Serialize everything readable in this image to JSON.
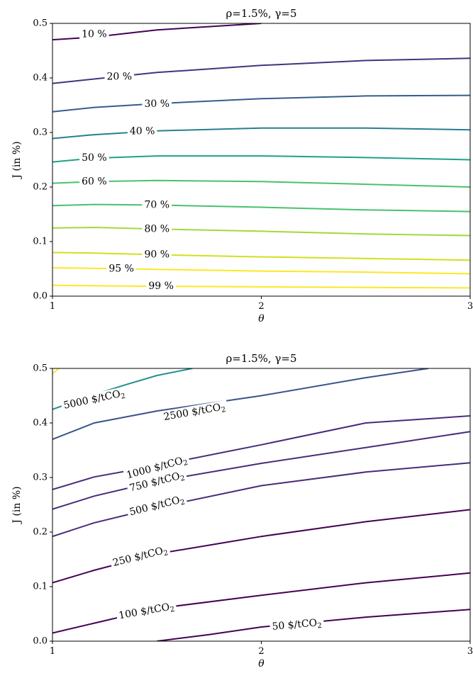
{
  "chart_data": [
    {
      "type": "contour",
      "title": "ρ=1.5%, γ=5",
      "xlabel": "θ",
      "ylabel": "J (in %)",
      "xlim": [
        1,
        3
      ],
      "ylim": [
        0,
        0.5
      ],
      "xticks": [
        "1",
        "2",
        "3"
      ],
      "yticks": [
        "0.0",
        "0.1",
        "0.2",
        "0.3",
        "0.4",
        "0.5"
      ],
      "x": [
        1,
        1.2,
        1.5,
        2,
        2.5,
        3
      ],
      "levels": [
        {
          "label": "10 %",
          "color": "#440154",
          "y": [
            0.47,
            0.475,
            0.488,
            0.5,
            null,
            null
          ],
          "label_at": [
            1.2,
            0.48
          ]
        },
        {
          "label": "20 %",
          "color": "#46327e",
          "y": [
            0.39,
            0.398,
            0.41,
            0.423,
            0.432,
            0.436
          ],
          "label_at": [
            1.32,
            0.402
          ]
        },
        {
          "label": "30 %",
          "color": "#365c8d",
          "y": [
            0.338,
            0.346,
            0.353,
            0.362,
            0.367,
            0.368
          ],
          "label_at": [
            1.5,
            0.352
          ]
        },
        {
          "label": "40 %",
          "color": "#277f8e",
          "y": [
            0.289,
            0.296,
            0.303,
            0.308,
            0.308,
            0.305
          ],
          "label_at": [
            1.43,
            0.302
          ]
        },
        {
          "label": "50 %",
          "color": "#1fa187",
          "y": [
            0.246,
            0.253,
            0.257,
            0.257,
            0.254,
            0.25
          ],
          "label_at": [
            1.2,
            0.253
          ]
        },
        {
          "label": "60 %",
          "color": "#4ac16d",
          "y": [
            0.207,
            0.21,
            0.212,
            0.21,
            0.205,
            0.2
          ],
          "label_at": [
            1.2,
            0.21
          ]
        },
        {
          "label": "70 %",
          "color": "#4ac16d",
          "y": [
            0.166,
            0.168,
            0.167,
            0.163,
            0.158,
            0.155
          ],
          "label_at": [
            1.5,
            0.167
          ]
        },
        {
          "label": "80 %",
          "color": "#a0da39",
          "y": [
            0.125,
            0.126,
            0.123,
            0.119,
            0.114,
            0.111
          ],
          "label_at": [
            1.5,
            0.123
          ]
        },
        {
          "label": "90 %",
          "color": "#d0e11c",
          "y": [
            0.08,
            0.079,
            0.076,
            0.072,
            0.069,
            0.066
          ],
          "label_at": [
            1.5,
            0.076
          ]
        },
        {
          "label": "95 %",
          "color": "#fde725",
          "y": [
            0.052,
            0.051,
            0.049,
            0.046,
            0.044,
            0.041
          ],
          "label_at": [
            1.33,
            0.05
          ]
        },
        {
          "label": "99 %",
          "color": "#fde725",
          "y": [
            0.02,
            0.019,
            0.018,
            0.017,
            0.016,
            0.015
          ],
          "label_at": [
            1.52,
            0.018
          ]
        }
      ]
    },
    {
      "type": "contour",
      "title": "ρ=1.5%, γ=5",
      "xlabel": "θ",
      "ylabel": "J (in %)",
      "xlim": [
        1,
        3
      ],
      "ylim": [
        0,
        0.5
      ],
      "xticks": [
        "1",
        "2",
        "3"
      ],
      "yticks": [
        "0.0",
        "0.1",
        "0.2",
        "0.3",
        "0.4",
        "0.5"
      ],
      "levels": [
        {
          "label": "",
          "color": "#fde725",
          "points": [
            [
              1,
              0.49
            ],
            [
              1.03,
              0.5
            ]
          ]
        },
        {
          "label": "5000 $/tCO2",
          "color": "#21918c",
          "points": [
            [
              1,
              0.425
            ],
            [
              1.2,
              0.452
            ],
            [
              1.35,
              0.47
            ],
            [
              1.5,
              0.487
            ],
            [
              1.67,
              0.5
            ]
          ],
          "label_at": [
            1.2,
            0.443
          ],
          "angle": -12
        },
        {
          "label": "2500 $/tCO2",
          "color": "#3b528b",
          "points": [
            [
              1,
              0.37
            ],
            [
              1.2,
              0.4
            ],
            [
              1.5,
              0.422
            ],
            [
              2,
              0.45
            ],
            [
              2.5,
              0.483
            ],
            [
              2.8,
              0.5
            ]
          ],
          "label_at": [
            1.68,
            0.42
          ],
          "angle": -10
        },
        {
          "label": "1000 $/tCO2",
          "color": "#472c7a",
          "points": [
            [
              1,
              0.278
            ],
            [
              1.2,
              0.301
            ],
            [
              1.5,
              0.322
            ],
            [
              2,
              0.36
            ],
            [
              2.5,
              0.4
            ],
            [
              3,
              0.413
            ]
          ],
          "label_at": [
            1.5,
            0.318
          ],
          "angle": -15
        },
        {
          "label": "750 $/tCO2",
          "color": "#472c7a",
          "points": [
            [
              1,
              0.242
            ],
            [
              1.2,
              0.266
            ],
            [
              1.5,
              0.293
            ],
            [
              2,
              0.326
            ],
            [
              2.5,
              0.355
            ],
            [
              3,
              0.384
            ]
          ],
          "label_at": [
            1.5,
            0.292
          ],
          "angle": -14
        },
        {
          "label": "500 $/tCO2",
          "color": "#472c7a",
          "points": [
            [
              1,
              0.192
            ],
            [
              1.2,
              0.217
            ],
            [
              1.5,
              0.245
            ],
            [
              2,
              0.285
            ],
            [
              2.5,
              0.31
            ],
            [
              3,
              0.327
            ]
          ],
          "label_at": [
            1.5,
            0.248
          ],
          "angle": -14
        },
        {
          "label": "250 $/tCO2",
          "color": "#440154",
          "points": [
            [
              1,
              0.107
            ],
            [
              1.2,
              0.13
            ],
            [
              1.5,
              0.16
            ],
            [
              2,
              0.192
            ],
            [
              2.5,
              0.219
            ],
            [
              3,
              0.241
            ]
          ],
          "label_at": [
            1.42,
            0.155
          ],
          "angle": -14
        },
        {
          "label": "100 $/tCO2",
          "color": "#440154",
          "points": [
            [
              1,
              0.015
            ],
            [
              1.2,
              0.033
            ],
            [
              1.5,
              0.06
            ],
            [
              2,
              0.084
            ],
            [
              2.5,
              0.107
            ],
            [
              3,
              0.125
            ]
          ],
          "label_at": [
            1.45,
            0.055
          ],
          "angle": -10
        },
        {
          "label": "50 $/tCO2",
          "color": "#440154",
          "points": [
            [
              1.5,
              0
            ],
            [
              1.75,
              0.012
            ],
            [
              2,
              0.026
            ],
            [
              2.5,
              0.044
            ],
            [
              3,
              0.058
            ]
          ],
          "label_at": [
            2.17,
            0.03
          ],
          "angle": -5
        }
      ]
    }
  ]
}
